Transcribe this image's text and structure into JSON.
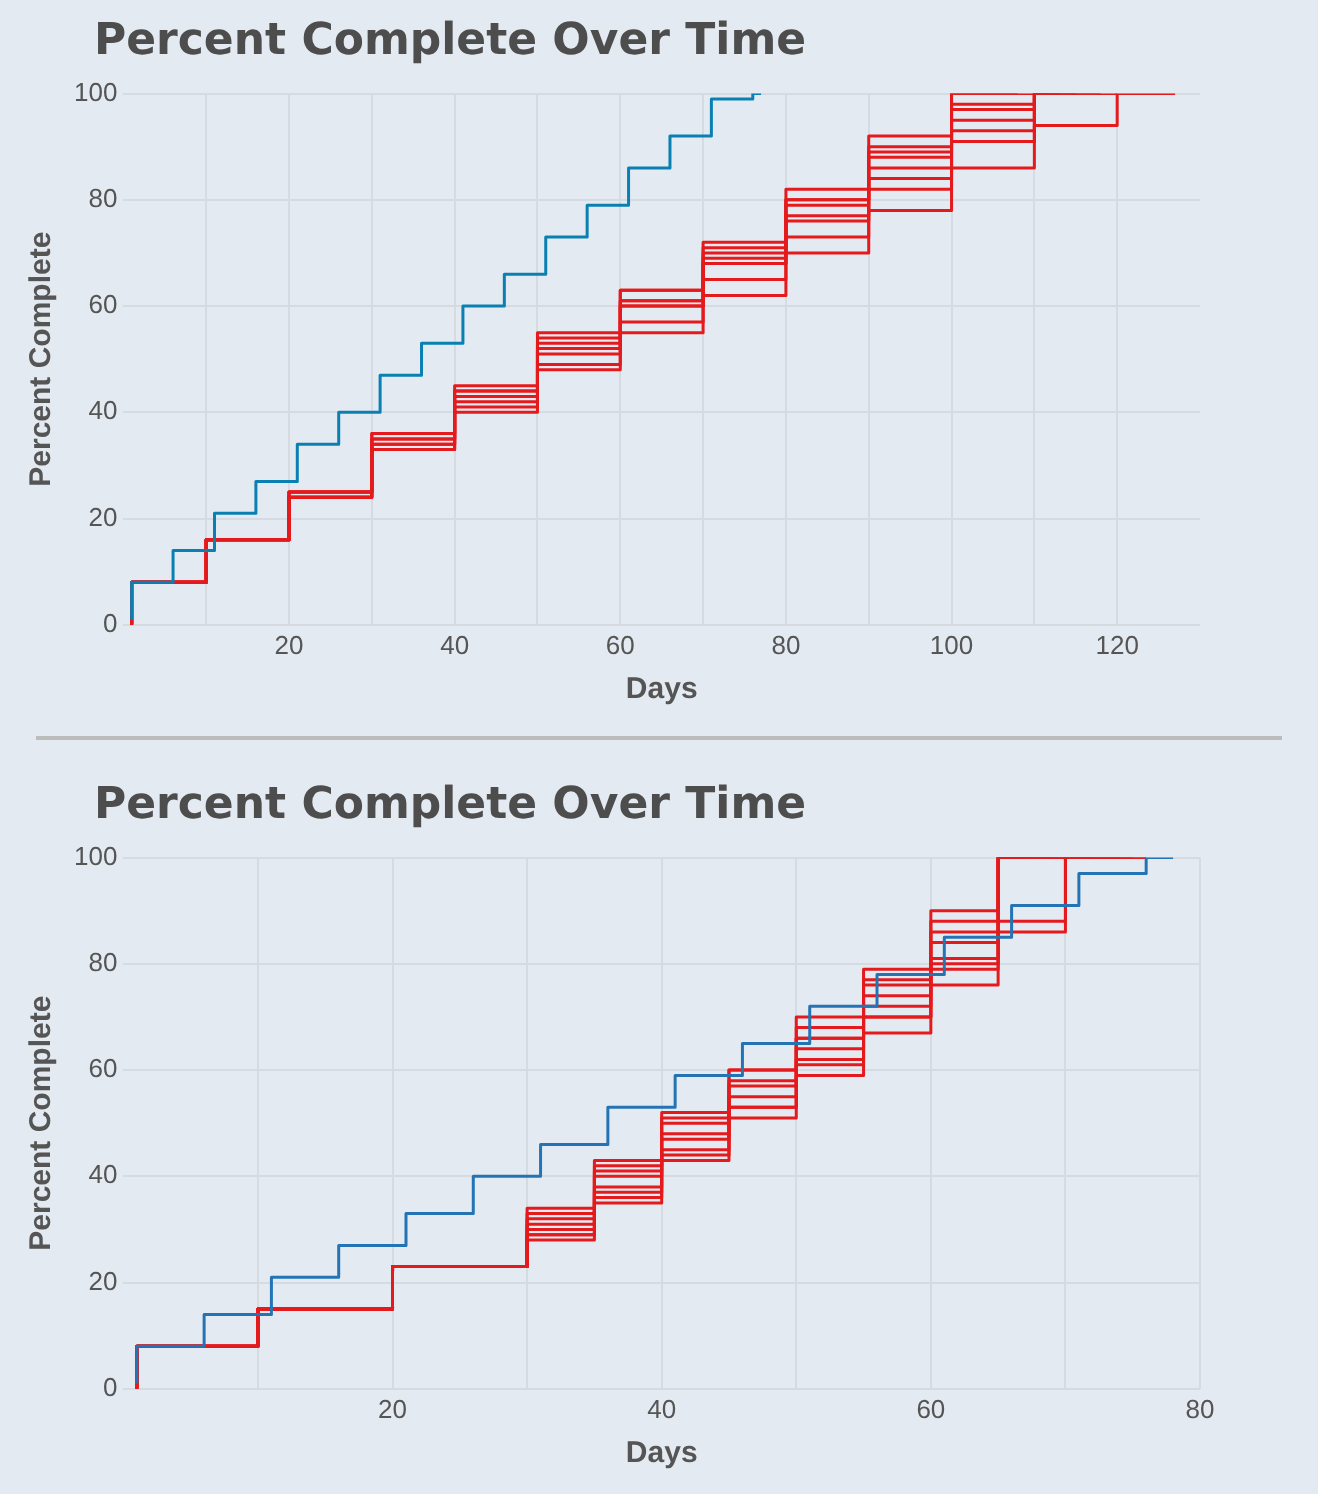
{
  "chart_data": [
    {
      "type": "step",
      "title": "Percent Complete Over Time",
      "xlabel": "Days",
      "ylabel": "Percent Complete",
      "xlim": [
        0,
        130
      ],
      "ylim": [
        0,
        100
      ],
      "grid": true,
      "xticks": [
        {
          "value": 10,
          "label": null
        },
        20,
        {
          "value": 30,
          "label": null
        },
        40,
        {
          "value": 50,
          "label": null
        },
        60,
        {
          "value": 70,
          "label": null
        },
        80,
        {
          "value": 90,
          "label": null
        },
        100,
        {
          "value": 110,
          "label": null
        },
        120
      ],
      "yticks": [
        0,
        20,
        40,
        60,
        80,
        100
      ],
      "series": [
        {
          "type": "step",
          "color": "#0a80b2",
          "x": [
            1,
            6,
            11,
            16,
            21,
            26,
            31,
            36,
            41,
            46,
            51,
            56,
            61,
            66,
            71,
            76,
            77
          ],
          "values": [
            1,
            8,
            14,
            21,
            27,
            34,
            40,
            47,
            53,
            60,
            66,
            73,
            79,
            86,
            92,
            99,
            100
          ]
        },
        {
          "type": "step",
          "color": "#e41a1c",
          "x": [
            1,
            10,
            20,
            30,
            40,
            50,
            60,
            70,
            80,
            90,
            100,
            110,
            112
          ],
          "values": [
            0,
            8,
            16,
            25,
            36,
            45,
            55,
            63,
            71,
            80,
            89,
            98,
            100
          ]
        },
        {
          "type": "step",
          "color": "#e41a1c",
          "x": [
            1,
            10,
            20,
            30,
            40,
            50,
            60,
            70,
            80,
            90,
            100,
            110,
            113
          ],
          "values": [
            0,
            8,
            16,
            25,
            35,
            44,
            53,
            61,
            69,
            79,
            88,
            97,
            100
          ]
        },
        {
          "type": "step",
          "color": "#e41a1c",
          "x": [
            1,
            10,
            20,
            30,
            40,
            50,
            60,
            70,
            80,
            90,
            100,
            110,
            115
          ],
          "values": [
            0,
            8,
            16,
            24,
            34,
            42,
            51,
            60,
            68,
            77,
            86,
            95,
            100
          ]
        },
        {
          "type": "step",
          "color": "#e41a1c",
          "x": [
            1,
            10,
            20,
            30,
            40,
            50,
            60,
            70,
            80,
            90,
            100,
            110,
            120
          ],
          "values": [
            0,
            8,
            16,
            24,
            33,
            41,
            49,
            57,
            65,
            73,
            82,
            91,
            100
          ]
        },
        {
          "type": "step",
          "color": "#e41a1c",
          "x": [
            1,
            10,
            20,
            30,
            40,
            50,
            60,
            70,
            80,
            90,
            100,
            110
          ],
          "values": [
            0,
            8,
            16,
            24,
            34,
            43,
            52,
            61,
            70,
            80,
            90,
            100
          ]
        },
        {
          "type": "step",
          "color": "#e41a1c",
          "x": [
            1,
            10,
            20,
            30,
            40,
            50,
            60,
            70,
            80,
            90,
            100,
            110,
            120,
            127
          ],
          "values": [
            0,
            8,
            16,
            24,
            33,
            40,
            48,
            55,
            62,
            70,
            78,
            86,
            94,
            100
          ]
        },
        {
          "type": "step",
          "color": "#e41a1c",
          "x": [
            1,
            10,
            20,
            30,
            40,
            50,
            60,
            70,
            80,
            90,
            100,
            110,
            118
          ],
          "values": [
            0,
            8,
            16,
            25,
            35,
            43,
            52,
            60,
            68,
            76,
            84,
            93,
            100
          ]
        },
        {
          "type": "step",
          "color": "#e41a1c",
          "x": [
            1,
            10,
            20,
            30,
            40,
            50,
            60,
            70,
            80,
            90,
            100,
            108
          ],
          "values": [
            0,
            8,
            16,
            25,
            36,
            44,
            54,
            63,
            72,
            82,
            92,
            100
          ]
        }
      ]
    },
    {
      "type": "step",
      "title": "Percent Complete Over Time",
      "xlabel": "Days",
      "ylabel": "Percent Complete",
      "xlim": [
        0,
        80
      ],
      "ylim": [
        0,
        100
      ],
      "grid": true,
      "xticks": [
        {
          "value": 10,
          "label": null
        },
        20,
        {
          "value": 30,
          "label": null
        },
        40,
        {
          "value": 50,
          "label": null
        },
        60,
        {
          "value": 70,
          "label": null
        },
        80
      ],
      "yticks": [
        0,
        20,
        40,
        60,
        80,
        100
      ],
      "series": [
        {
          "type": "step",
          "color": "#2474b5",
          "x": [
            1,
            6,
            11,
            16,
            21,
            26,
            31,
            36,
            41,
            46,
            51,
            56,
            61,
            66,
            71,
            76,
            78
          ],
          "values": [
            1,
            8,
            14,
            21,
            27,
            33,
            40,
            46,
            53,
            59,
            65,
            72,
            78,
            85,
            91,
            97,
            100
          ]
        },
        {
          "type": "step",
          "color": "#e41a1c",
          "x": [
            1,
            10,
            20,
            30,
            35,
            40,
            45,
            50,
            55,
            60,
            65,
            69
          ],
          "values": [
            0,
            8,
            15,
            23,
            34,
            43,
            52,
            60,
            68,
            77,
            88,
            100
          ]
        },
        {
          "type": "step",
          "color": "#e41a1c",
          "x": [
            1,
            10,
            20,
            30,
            35,
            40,
            45,
            50,
            55,
            60,
            65,
            72
          ],
          "values": [
            0,
            8,
            15,
            23,
            32,
            41,
            50,
            58,
            66,
            74,
            84,
            100
          ]
        },
        {
          "type": "step",
          "color": "#e41a1c",
          "x": [
            1,
            10,
            20,
            30,
            35,
            40,
            45,
            50,
            55,
            60,
            65,
            74
          ],
          "values": [
            0,
            8,
            15,
            23,
            30,
            38,
            47,
            55,
            64,
            72,
            81,
            100
          ]
        },
        {
          "type": "step",
          "color": "#e41a1c",
          "x": [
            1,
            10,
            20,
            30,
            35,
            40,
            45,
            50,
            55,
            60,
            65,
            70,
            76
          ],
          "values": [
            0,
            8,
            15,
            23,
            28,
            35,
            43,
            51,
            59,
            67,
            76,
            86,
            100
          ]
        },
        {
          "type": "step",
          "color": "#e41a1c",
          "x": [
            1,
            10,
            20,
            30,
            35,
            40,
            45,
            50,
            55,
            60,
            65,
            70
          ],
          "values": [
            0,
            8,
            15,
            23,
            31,
            40,
            48,
            57,
            66,
            76,
            86,
            100
          ]
        },
        {
          "type": "step",
          "color": "#e41a1c",
          "x": [
            1,
            10,
            20,
            30,
            35,
            40,
            45,
            50,
            55,
            60,
            65,
            75
          ],
          "values": [
            0,
            8,
            15,
            23,
            29,
            37,
            45,
            53,
            62,
            70,
            80,
            100
          ]
        },
        {
          "type": "step",
          "color": "#e41a1c",
          "x": [
            1,
            10,
            20,
            30,
            35,
            40,
            45,
            50,
            55,
            60,
            65,
            67
          ],
          "values": [
            0,
            8,
            15,
            23,
            33,
            42,
            51,
            60,
            70,
            79,
            90,
            100
          ]
        },
        {
          "type": "step",
          "color": "#e41a1c",
          "x": [
            1,
            10,
            20,
            30,
            35,
            40,
            45,
            50,
            55,
            60,
            65,
            70,
            76
          ],
          "values": [
            0,
            8,
            15,
            23,
            29,
            36,
            44,
            53,
            61,
            70,
            79,
            88,
            100
          ]
        }
      ]
    }
  ]
}
